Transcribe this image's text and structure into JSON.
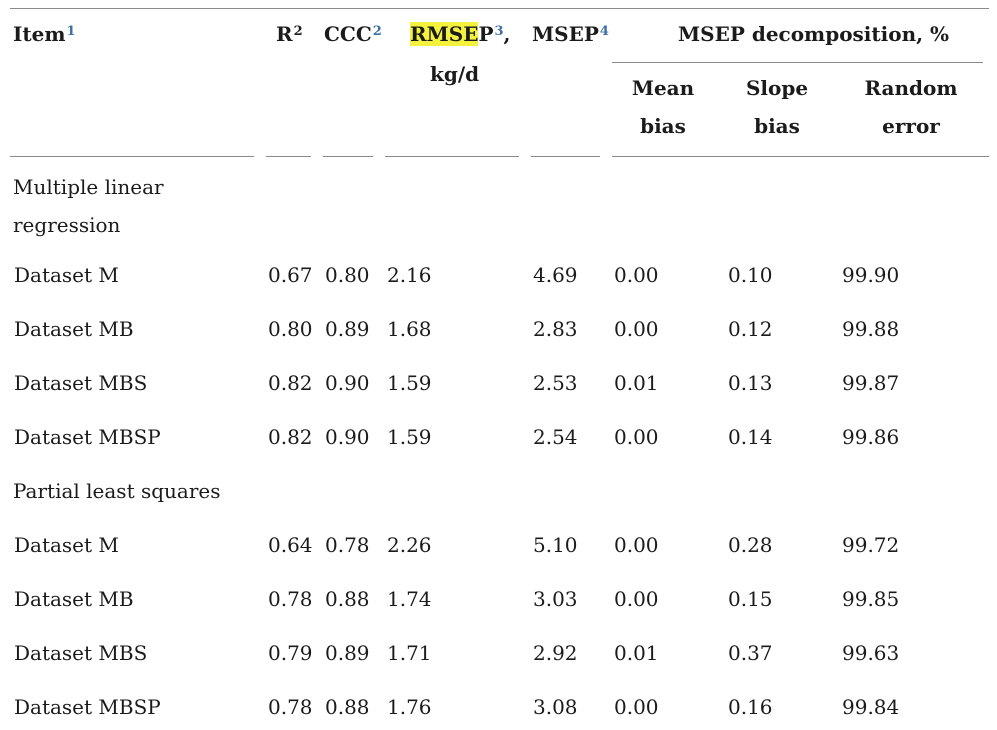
{
  "header": {
    "item": {
      "label": "Item",
      "fn": "1"
    },
    "r2": {
      "label": "R",
      "pow": "2"
    },
    "ccc": {
      "label": "CCC",
      "fn": "2"
    },
    "rmsep": {
      "hl": "RMSE",
      "rest": "P",
      "fn": "3",
      "comma": ",",
      "unit": "kg/d"
    },
    "msep": {
      "label": "MSEP",
      "fn": "4"
    },
    "decomp": {
      "label": "MSEP decomposition, %"
    },
    "mean_bias": {
      "l1": "Mean",
      "l2": "bias"
    },
    "slope_bias": {
      "l1": "Slope",
      "l2": "bias"
    },
    "random_error": {
      "l1": "Random",
      "l2": "error"
    }
  },
  "sections": [
    {
      "title_l1": "Multiple linear",
      "title_l2": "regression",
      "rows": [
        {
          "item": "Dataset M",
          "r2": "0.67",
          "ccc": "0.80",
          "rmsep": "2.16",
          "msep": "4.69",
          "mean": "0.00",
          "slope": "0.10",
          "random": "99.90"
        },
        {
          "item": "Dataset MB",
          "r2": "0.80",
          "ccc": "0.89",
          "rmsep": "1.68",
          "msep": "2.83",
          "mean": "0.00",
          "slope": "0.12",
          "random": "99.88"
        },
        {
          "item": "Dataset MBS",
          "r2": "0.82",
          "ccc": "0.90",
          "rmsep": "1.59",
          "msep": "2.53",
          "mean": "0.01",
          "slope": "0.13",
          "random": "99.87"
        },
        {
          "item": "Dataset MBSP",
          "r2": "0.82",
          "ccc": "0.90",
          "rmsep": "1.59",
          "msep": "2.54",
          "mean": "0.00",
          "slope": "0.14",
          "random": "99.86"
        }
      ]
    },
    {
      "title_l1": "Partial least squares",
      "rows": [
        {
          "item": "Dataset M",
          "r2": "0.64",
          "ccc": "0.78",
          "rmsep": "2.26",
          "msep": "5.10",
          "mean": "0.00",
          "slope": "0.28",
          "random": "99.72"
        },
        {
          "item": "Dataset MB",
          "r2": "0.78",
          "ccc": "0.88",
          "rmsep": "1.74",
          "msep": "3.03",
          "mean": "0.00",
          "slope": "0.15",
          "random": "99.85"
        },
        {
          "item": "Dataset MBS",
          "r2": "0.79",
          "ccc": "0.89",
          "rmsep": "1.71",
          "msep": "2.92",
          "mean": "0.01",
          "slope": "0.37",
          "random": "99.63"
        },
        {
          "item": "Dataset MBSP",
          "r2": "0.78",
          "ccc": "0.88",
          "rmsep": "1.76",
          "msep": "3.08",
          "mean": "0.00",
          "slope": "0.16",
          "random": "99.84"
        }
      ]
    }
  ]
}
